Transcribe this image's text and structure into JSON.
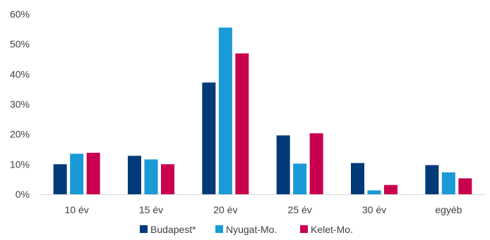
{
  "chart_data": {
    "type": "bar",
    "categories": [
      "10 év",
      "15 év",
      "20 év",
      "25 év",
      "30 év",
      "egyéb"
    ],
    "series": [
      {
        "name": "Budapest*",
        "color": "#003a78",
        "values": [
          10.0,
          12.8,
          37.2,
          19.6,
          10.4,
          9.7
        ]
      },
      {
        "name": "Nyugat-Mo.",
        "color": "#1a9ad6",
        "values": [
          13.5,
          11.6,
          55.5,
          10.2,
          1.3,
          7.3
        ]
      },
      {
        "name": "Kelet-Mo.",
        "color": "#c8004f",
        "values": [
          13.8,
          10.0,
          46.9,
          20.3,
          3.1,
          5.3
        ]
      }
    ],
    "ylim": [
      0,
      60
    ],
    "yticks": [
      0,
      10,
      20,
      30,
      40,
      50,
      60
    ],
    "ytick_labels": [
      "0%",
      "10%",
      "20%",
      "30%",
      "40%",
      "50%",
      "60%"
    ],
    "y_unit": "%",
    "grid": false,
    "legend_position": "bottom",
    "title": "",
    "xlabel": "",
    "ylabel": ""
  }
}
